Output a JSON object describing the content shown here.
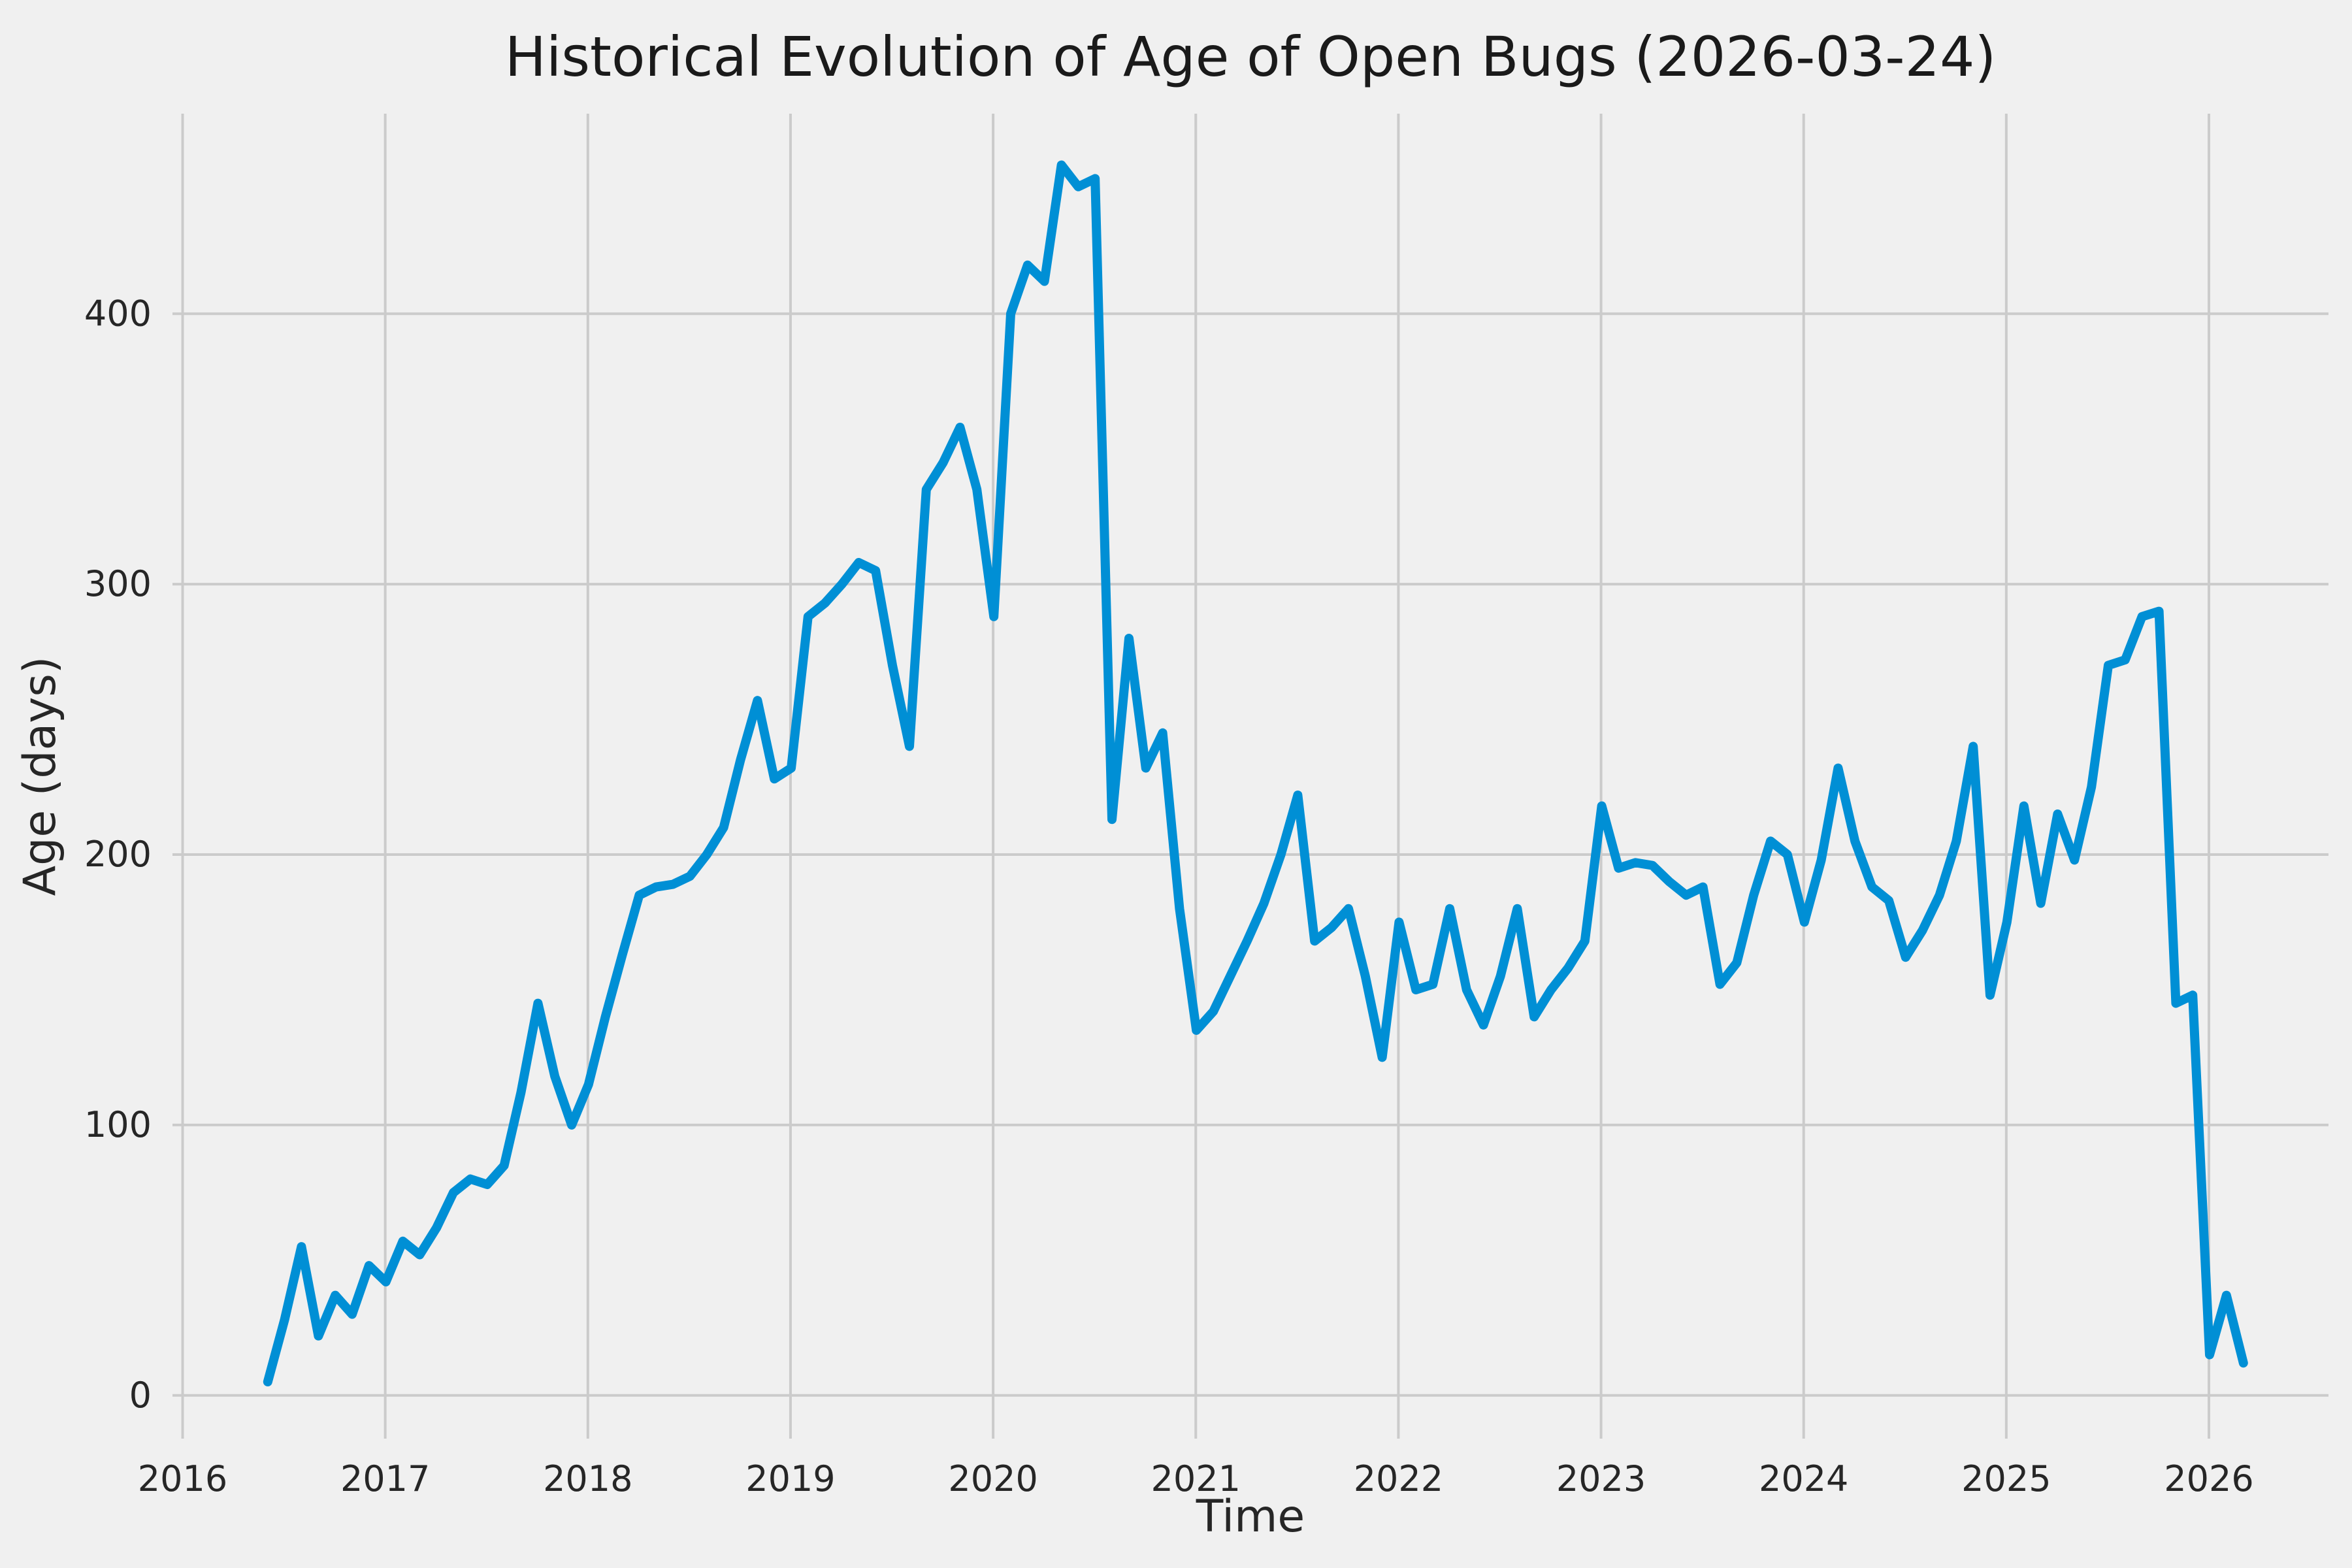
{
  "chart_data": {
    "type": "line",
    "title": "Historical Evolution of Age of Open Bugs (2026-03-24)",
    "xlabel": "Time",
    "ylabel": "Age (days)",
    "x_ticks": [
      2016,
      2017,
      2018,
      2019,
      2020,
      2021,
      2022,
      2023,
      2024,
      2025,
      2026
    ],
    "y_ticks": [
      0,
      100,
      200,
      300,
      400
    ],
    "xlim": [
      2015.95,
      2026.59
    ],
    "ylim": [
      -16,
      474
    ],
    "grid": true,
    "legend": false,
    "background_color": "#f0f0f0",
    "grid_color": "#cbcbcb",
    "line_color": "#008fd5",
    "text_color": "#262626",
    "series": [
      {
        "name": "age-of-open-bugs",
        "start_x": 2016.42,
        "x_step_years": 0.0833333,
        "values": [
          5,
          28,
          55,
          22,
          37,
          30,
          48,
          42,
          57,
          52,
          62,
          75,
          80,
          78,
          85,
          112,
          145,
          118,
          100,
          115,
          140,
          163,
          185,
          188,
          189,
          192,
          200,
          210,
          235,
          257,
          228,
          232,
          288,
          293,
          300,
          308,
          305,
          270,
          240,
          335,
          345,
          358,
          335,
          288,
          400,
          418,
          412,
          455,
          447,
          450,
          213,
          280,
          232,
          245,
          180,
          135,
          142,
          155,
          168,
          182,
          200,
          222,
          168,
          173,
          180,
          155,
          125,
          175,
          150,
          152,
          180,
          150,
          137,
          155,
          180,
          140,
          150,
          158,
          168,
          218,
          195,
          197,
          196,
          190,
          185,
          188,
          152,
          160,
          185,
          205,
          200,
          175,
          198,
          232,
          205,
          188,
          183,
          162,
          172,
          185,
          205,
          240,
          148,
          175,
          218,
          182,
          215,
          198,
          225,
          270,
          272,
          288,
          290,
          145,
          148,
          15,
          37,
          12
        ]
      }
    ]
  }
}
